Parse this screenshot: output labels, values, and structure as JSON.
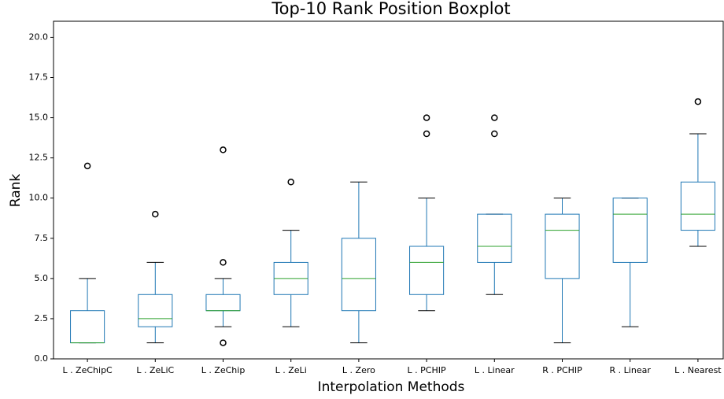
{
  "chart_data": {
    "type": "boxplot",
    "title": "Top-10 Rank Position Boxplot",
    "x_label": "Interpolation Methods",
    "y_label": "Rank",
    "categories": [
      "L . ZeChipC",
      "L . ZeLiC",
      "L . ZeChip",
      "L . ZeLi",
      "L . Zero",
      "L . PCHIP",
      "L . Linear",
      "R . PCHIP",
      "R . Linear",
      "L . Nearest"
    ],
    "boxes": [
      {
        "whislo": 1,
        "q1": 1,
        "med": 1,
        "q3": 3,
        "whishi": 5,
        "fliers": [
          12
        ]
      },
      {
        "whislo": 1,
        "q1": 2,
        "med": 2.5,
        "q3": 4,
        "whishi": 6,
        "fliers": [
          9
        ]
      },
      {
        "whislo": 2,
        "q1": 3,
        "med": 3,
        "q3": 4,
        "whishi": 5,
        "fliers": [
          1,
          6,
          13
        ]
      },
      {
        "whislo": 2,
        "q1": 4,
        "med": 5,
        "q3": 6,
        "whishi": 8,
        "fliers": [
          11
        ]
      },
      {
        "whislo": 1,
        "q1": 3,
        "med": 5,
        "q3": 7.5,
        "whishi": 11
      },
      {
        "whislo": 3,
        "q1": 4,
        "med": 6,
        "q3": 7,
        "whishi": 10,
        "fliers": [
          14,
          15
        ]
      },
      {
        "whislo": 4,
        "q1": 6,
        "med": 7,
        "q3": 9,
        "whishi": 9,
        "fliers": [
          14,
          15
        ]
      },
      {
        "whislo": 1,
        "q1": 5,
        "med": 8,
        "q3": 9,
        "whishi": 10
      },
      {
        "whislo": 2,
        "q1": 6,
        "med": 9,
        "q3": 10,
        "whishi": 10
      },
      {
        "whislo": 7,
        "q1": 8,
        "med": 9,
        "q3": 11,
        "whishi": 14,
        "fliers": [
          16
        ]
      }
    ],
    "box_color": "#1f77b4",
    "median_color": "#2ca02c",
    "cap_color": "#000000",
    "ylim": [
      0,
      21
    ],
    "yticks": [
      {
        "value": 0,
        "label": "0.0"
      },
      2.5,
      {
        "value": 5,
        "label": "5.0"
      },
      7.5,
      {
        "value": 10,
        "label": "10.0"
      },
      12.5,
      {
        "value": 15,
        "label": "15.0"
      },
      17.5,
      {
        "value": 20,
        "label": "20.0"
      }
    ]
  }
}
